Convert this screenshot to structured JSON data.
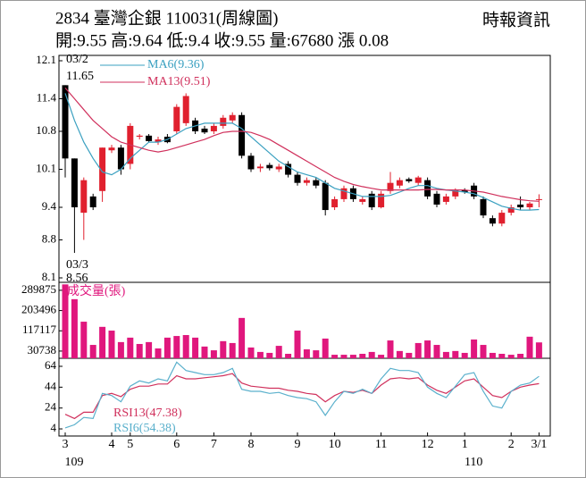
{
  "header": {
    "title": "2834 臺灣企銀 110031(周線圖)",
    "quote": "開:9.55 高:9.64 低:9.4 收:9.55 量:67680 漲 0.08",
    "source": "時報資訊"
  },
  "chart_data": [
    {
      "type": "candlestick",
      "open": [
        11.65,
        10.3,
        9.3,
        9.6,
        9.7,
        10.45,
        10.5,
        10.2,
        10.7,
        10.72,
        10.6,
        10.7,
        10.8,
        10.95,
        11.0,
        10.85,
        10.8,
        10.9,
        11.0,
        11.1,
        10.35,
        10.12,
        10.18,
        10.1,
        10.2,
        10.0,
        9.85,
        9.9,
        9.85,
        9.4,
        9.55,
        9.75,
        9.5,
        9.65,
        9.4,
        9.7,
        9.8,
        9.92,
        9.85,
        9.9,
        9.65,
        9.5,
        9.6,
        9.72,
        9.8,
        9.55,
        9.2,
        9.1,
        9.3,
        9.45,
        9.4,
        9.55
      ],
      "high": [
        11.65,
        10.3,
        9.95,
        9.65,
        10.5,
        10.55,
        10.55,
        10.95,
        10.75,
        10.75,
        10.7,
        10.75,
        11.3,
        11.5,
        11.05,
        10.9,
        10.95,
        11.1,
        11.15,
        11.15,
        10.4,
        10.2,
        10.22,
        10.2,
        10.25,
        10.05,
        9.95,
        9.95,
        9.9,
        9.6,
        9.8,
        9.8,
        9.6,
        9.7,
        9.7,
        10.05,
        9.95,
        9.95,
        9.98,
        9.95,
        9.7,
        9.65,
        9.75,
        9.75,
        9.85,
        9.6,
        9.25,
        9.35,
        9.45,
        9.6,
        9.5,
        9.64
      ],
      "low": [
        9.95,
        8.56,
        8.8,
        9.35,
        9.5,
        10.4,
        10.0,
        10.1,
        10.65,
        10.6,
        10.55,
        10.58,
        10.75,
        10.9,
        10.75,
        10.75,
        10.75,
        10.85,
        10.95,
        10.3,
        10.05,
        10.05,
        10.08,
        10.05,
        9.95,
        9.8,
        9.8,
        9.75,
        9.25,
        9.35,
        9.5,
        9.5,
        9.45,
        9.35,
        9.38,
        9.65,
        9.75,
        9.85,
        9.8,
        9.55,
        9.4,
        9.45,
        9.55,
        9.65,
        9.55,
        9.2,
        9.05,
        9.05,
        9.25,
        9.35,
        9.35,
        9.4
      ],
      "close": [
        10.3,
        9.4,
        9.9,
        9.4,
        10.5,
        10.5,
        10.1,
        10.9,
        10.72,
        10.62,
        10.65,
        10.6,
        11.25,
        11.45,
        10.8,
        10.78,
        10.9,
        11.05,
        11.1,
        10.35,
        10.1,
        10.15,
        10.12,
        10.15,
        10.0,
        9.85,
        9.9,
        9.8,
        9.35,
        9.55,
        9.75,
        9.55,
        9.55,
        9.4,
        9.65,
        9.85,
        9.9,
        9.88,
        9.95,
        9.6,
        9.45,
        9.6,
        9.72,
        9.68,
        9.6,
        9.25,
        9.1,
        9.3,
        9.4,
        9.4,
        9.47,
        9.55
      ],
      "up_color": "#e0202e",
      "down_color": "#000000",
      "series": [
        {
          "name": "MA6(9.36)",
          "color": "#3aa0c0",
          "values": [
            11.5,
            11.0,
            10.6,
            10.3,
            10.05,
            10.0,
            10.1,
            10.3,
            10.45,
            10.6,
            10.6,
            10.65,
            10.75,
            10.85,
            10.9,
            10.95,
            10.95,
            10.95,
            10.95,
            10.85,
            10.7,
            10.55,
            10.4,
            10.25,
            10.15,
            10.05,
            10.0,
            9.95,
            9.85,
            9.75,
            9.7,
            9.65,
            9.6,
            9.6,
            9.6,
            9.62,
            9.68,
            9.75,
            9.8,
            9.8,
            9.75,
            9.72,
            9.7,
            9.68,
            9.65,
            9.58,
            9.5,
            9.42,
            9.38,
            9.35,
            9.35,
            9.36
          ]
        },
        {
          "name": "MA13(9.51)",
          "color": "#d0305c",
          "values": [
            11.6,
            11.4,
            11.2,
            11.0,
            10.85,
            10.7,
            10.6,
            10.55,
            10.5,
            10.45,
            10.42,
            10.45,
            10.5,
            10.55,
            10.6,
            10.65,
            10.72,
            10.78,
            10.8,
            10.8,
            10.78,
            10.72,
            10.65,
            10.55,
            10.45,
            10.35,
            10.25,
            10.15,
            10.05,
            9.95,
            9.88,
            9.82,
            9.78,
            9.75,
            9.72,
            9.72,
            9.72,
            9.72,
            9.72,
            9.73,
            9.73,
            9.72,
            9.72,
            9.72,
            9.7,
            9.68,
            9.64,
            9.6,
            9.57,
            9.54,
            9.52,
            9.51
          ]
        }
      ],
      "annotations": [
        "03/2",
        "03/3"
      ],
      "ylim": [
        8.1,
        12.1
      ],
      "yticks": [
        12.1,
        11.4,
        10.8,
        10.1,
        9.4,
        8.8,
        8.1
      ],
      "grid": false
    },
    {
      "type": "bar",
      "series": [
        {
          "name": "成交量(張)",
          "color": "#e0177d",
          "values": [
            315000,
            252000,
            156000,
            57000,
            134000,
            118000,
            69000,
            88000,
            61000,
            69000,
            42000,
            88000,
            95000,
            99000,
            88000,
            50000,
            34000,
            73000,
            65000,
            172000,
            46000,
            27000,
            23000,
            53000,
            19000,
            118000,
            38000,
            34000,
            84000,
            15000,
            15000,
            15000,
            19000,
            27000,
            15000,
            76000,
            31000,
            23000,
            65000,
            76000,
            57000,
            27000,
            31000,
            23000,
            80000,
            57000,
            23000,
            19000,
            15000,
            19000,
            92000,
            67680
          ]
        }
      ],
      "ylim": [
        0,
        320000
      ],
      "yticks": [
        289875,
        203496,
        117117,
        30738
      ],
      "grid": false
    },
    {
      "type": "line",
      "categories": [
        "3",
        null,
        null,
        null,
        null,
        "4",
        null,
        "5",
        null,
        null,
        null,
        null,
        "6",
        null,
        null,
        null,
        "7",
        null,
        null,
        null,
        "8",
        null,
        null,
        null,
        null,
        "9",
        null,
        null,
        null,
        "10",
        null,
        null,
        null,
        null,
        "11",
        null,
        null,
        null,
        null,
        "12",
        null,
        null,
        null,
        "1",
        null,
        null,
        null,
        null,
        "2",
        null,
        null,
        "3/1"
      ],
      "year_labels": [
        "109",
        null,
        null,
        null,
        null,
        null,
        null,
        null,
        null,
        null,
        null,
        null,
        null,
        null,
        null,
        null,
        null,
        null,
        null,
        null,
        null,
        null,
        null,
        null,
        null,
        null,
        null,
        null,
        null,
        null,
        null,
        null,
        null,
        null,
        null,
        null,
        null,
        null,
        null,
        null,
        null,
        null,
        null,
        "110",
        null,
        null,
        null,
        null,
        null,
        null,
        null,
        null
      ],
      "series": [
        {
          "name": "RSI13(47.38)",
          "color": "#d0305c",
          "values": [
            18,
            14,
            20,
            20,
            36,
            38,
            35,
            42,
            45,
            45,
            47,
            47,
            55,
            52,
            52,
            53,
            54,
            55,
            57,
            48,
            45,
            44,
            43,
            43,
            41,
            40,
            38,
            37,
            30,
            36,
            40,
            39,
            41,
            38,
            46,
            52,
            53,
            52,
            53,
            46,
            41,
            38,
            44,
            50,
            52,
            44,
            36,
            34,
            40,
            44,
            46,
            47.38
          ]
        },
        {
          "name": "RSI6(54.38)",
          "color": "#5ab0cc",
          "values": [
            5,
            8,
            15,
            14,
            38,
            36,
            30,
            45,
            50,
            48,
            52,
            50,
            68,
            60,
            58,
            56,
            56,
            58,
            62,
            42,
            40,
            40,
            38,
            39,
            36,
            34,
            33,
            30,
            17,
            30,
            40,
            38,
            42,
            38,
            52,
            62,
            60,
            60,
            58,
            44,
            38,
            34,
            45,
            56,
            58,
            40,
            26,
            24,
            40,
            46,
            48,
            54.38
          ]
        }
      ],
      "ylim": [
        0,
        70
      ],
      "yticks": [
        64,
        44,
        24,
        4
      ],
      "grid": false
    }
  ]
}
